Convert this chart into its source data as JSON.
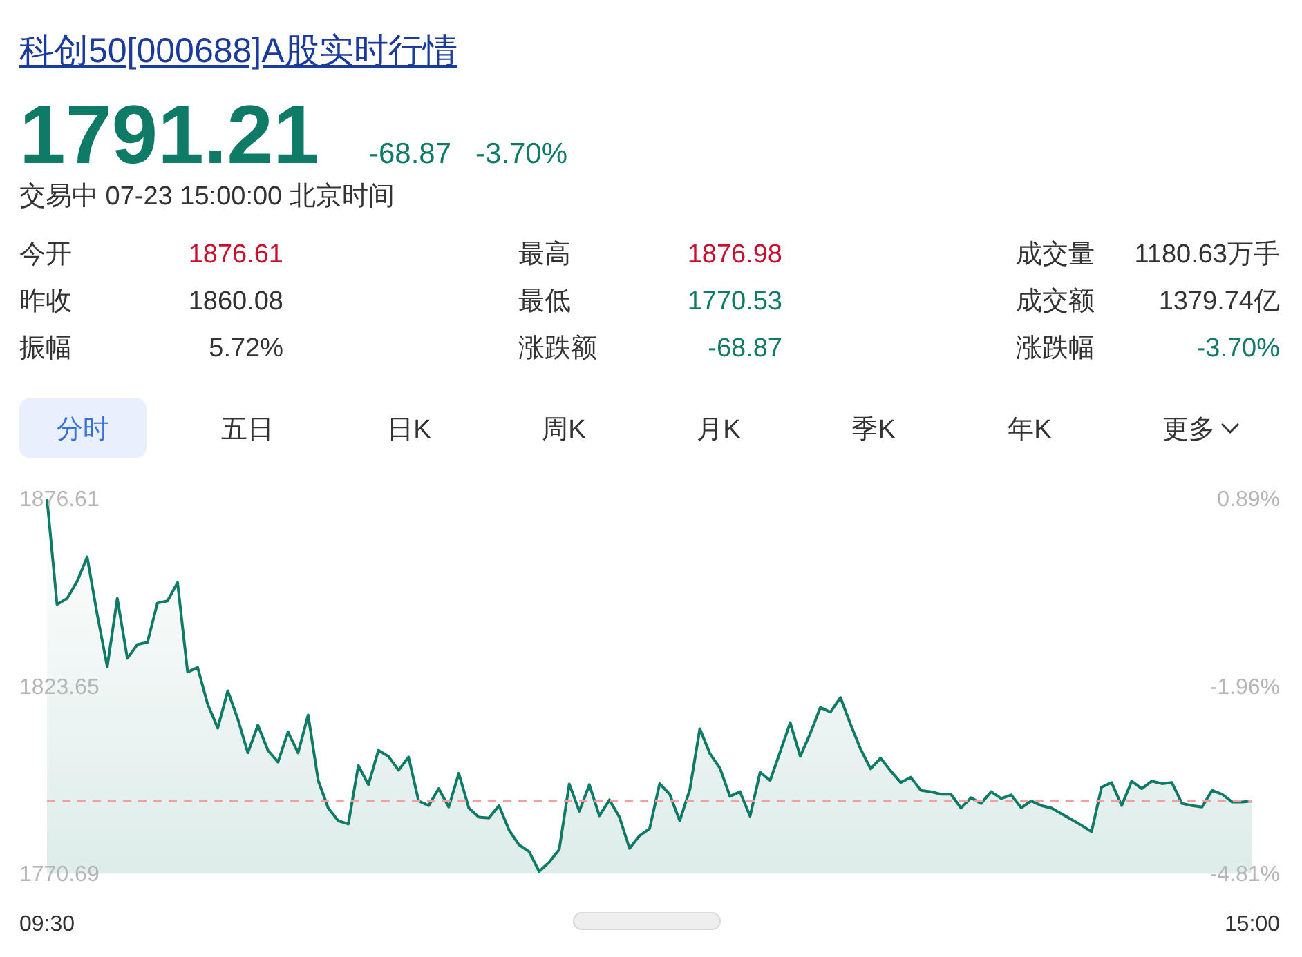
{
  "chart_data": {
    "type": "area",
    "title": "科创50[000688]A股实时行情",
    "annotations": [
      "1791.21",
      "-68.87",
      "-3.70%",
      "交易中 07-23 15:00:00 北京时间",
      "今开",
      "1876.61",
      "最高",
      "1876.98",
      "成交量",
      "1180.63万手",
      "昨收",
      "1860.08",
      "最低",
      "1770.53",
      "成交额",
      "1379.74亿",
      "振幅",
      "5.72%",
      "涨跌额",
      "-68.87",
      "涨跌幅",
      "-3.70%",
      "分时",
      "五日",
      "日K",
      "周K",
      "月K",
      "季K",
      "年K",
      "更多"
    ],
    "categories": [
      "09:30",
      null,
      null,
      null,
      null,
      null,
      null,
      null,
      null,
      null,
      null,
      null,
      null,
      null,
      null,
      null,
      null,
      null,
      null,
      null,
      null,
      null,
      null,
      null,
      null,
      null,
      null,
      null,
      null,
      null,
      null,
      null,
      null,
      null,
      null,
      null,
      null,
      null,
      null,
      null,
      null,
      null,
      null,
      null,
      null,
      null,
      null,
      null,
      null,
      null,
      null,
      null,
      null,
      null,
      null,
      null,
      null,
      null,
      null,
      null,
      null,
      null,
      null,
      null,
      null,
      null,
      null,
      null,
      null,
      null,
      null,
      null,
      null,
      null,
      null,
      null,
      null,
      null,
      null,
      null,
      null,
      null,
      null,
      null,
      null,
      null,
      null,
      null,
      null,
      null,
      null,
      null,
      null,
      null,
      null,
      null,
      null,
      null,
      null,
      null,
      null,
      null,
      null,
      null,
      null,
      null,
      null,
      null,
      null,
      null,
      null,
      null,
      null,
      null,
      null,
      null,
      null,
      null,
      null,
      null,
      "15:00"
    ],
    "ylim": [
      1770.69,
      1876.61
    ],
    "yticks": [
      1876.61,
      1823.65,
      1770.69
    ],
    "y2lim": [
      -4.81,
      0.89
    ],
    "y2ticks": [
      {
        "value": 0.89,
        "label": "0.89%"
      },
      {
        "value": -1.96,
        "label": "-1.96%"
      },
      {
        "value": -4.81,
        "label": "-4.81%"
      }
    ],
    "ref_lines": [
      {
        "axis": "y",
        "value": 1791.21,
        "color": "#f4a0a0",
        "line_style": "dashed"
      }
    ],
    "series": [
      {
        "color": "#0f7a66",
        "values": [
          1876.6,
          1846.7,
          1848.4,
          1853.2,
          1860.1,
          1843.9,
          1829.1,
          1848.4,
          1831.5,
          1835.4,
          1836.0,
          1847.1,
          1847.7,
          1852.9,
          1827.6,
          1828.9,
          1818.5,
          1811.8,
          1822.3,
          1814.3,
          1804.8,
          1812.6,
          1805.5,
          1802.2,
          1810.7,
          1804.8,
          1815.5,
          1797.0,
          1789.2,
          1785.6,
          1784.7,
          1801.2,
          1795.8,
          1805.5,
          1803.8,
          1799.9,
          1803.6,
          1791.2,
          1789.9,
          1794.7,
          1789.5,
          1799.0,
          1789.2,
          1786.6,
          1786.4,
          1789.9,
          1783.0,
          1778.8,
          1776.9,
          1771.3,
          1773.9,
          1777.5,
          1796.0,
          1788.3,
          1795.8,
          1787.0,
          1791.5,
          1786.6,
          1777.8,
          1781.4,
          1783.4,
          1796.1,
          1793.1,
          1785.6,
          1794.4,
          1811.6,
          1804.6,
          1800.5,
          1792.5,
          1793.8,
          1786.9,
          1799.3,
          1797.0,
          1805.1,
          1813.3,
          1803.8,
          1810.3,
          1817.6,
          1816.3,
          1820.4,
          1812.9,
          1805.9,
          1800.3,
          1803.3,
          1799.7,
          1796.4,
          1797.9,
          1794.2,
          1793.8,
          1793.1,
          1793.1,
          1789.2,
          1792.1,
          1790.5,
          1793.8,
          1791.9,
          1792.9,
          1789.3,
          1791.2,
          1789.9,
          1789.2,
          1787.6,
          1786.0,
          1784.3,
          1782.5,
          1795.1,
          1796.4,
          1789.9,
          1796.8,
          1794.7,
          1796.8,
          1796.1,
          1796.4,
          1790.5,
          1789.9,
          1789.5,
          1794.2,
          1793.1,
          1790.9,
          1790.9,
          1791.2
        ]
      }
    ]
  }
}
